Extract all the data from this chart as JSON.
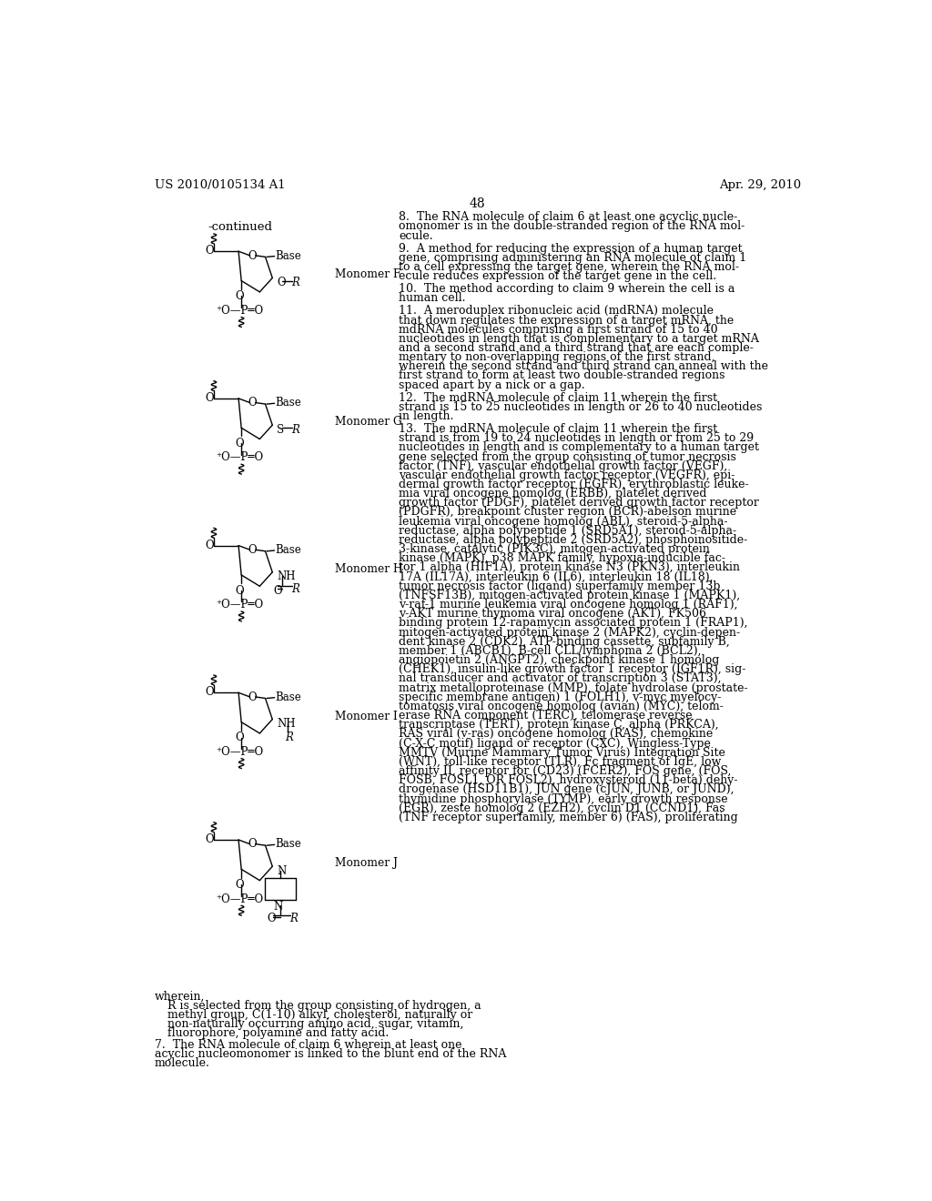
{
  "page_header_left": "US 2010/0105134 A1",
  "page_header_right": "Apr. 29, 2010",
  "page_number": "48",
  "continued_label": "-continued",
  "monomer_labels": [
    "Monomer F",
    "Monomer G",
    "Monomer H",
    "Monomer I",
    "Monomer J"
  ],
  "wherein_text": "wherein,",
  "r_def_lines": [
    "R is selected from the group consisting of hydrogen, a",
    "methyl group, C(1-10) alkyl, cholesterol, naturally or",
    "non-naturally occurring amino acid, sugar, vitamin,",
    "fluorophore, polyamine and fatty acid."
  ],
  "claim7_lines": [
    "7.  The RNA molecule of claim 6 wherein at least one",
    "acyclic nucleomonomer is linked to the blunt end of the RNA",
    "molecule."
  ],
  "claim8_lines": [
    "8.  The RNA molecule of claim 6 at least one acyclic nucle-",
    "omonomer is in the double-stranded region of the RNA mol-",
    "ecule."
  ],
  "claim9_lines": [
    "9.  A method for reducing the expression of a human target",
    "gene, comprising administering an RNA molecule of claim 1",
    "to a cell expressing the target gene, wherein the RNA mol-",
    "ecule reduces expression of the target gene in the cell."
  ],
  "claim10_lines": [
    "10.  The method according to claim 9 wherein the cell is a",
    "human cell."
  ],
  "claim11_lines": [
    "11.  A meroduplex ribonucleic acid (mdRNA) molecule",
    "that down regulates the expression of a target mRNA, the",
    "mdRNA molecules comprising a first strand of 15 to 40",
    "nucleotides in length that is complementary to a target mRNA",
    "and a second strand and a third strand that are each comple-",
    "mentary to non-overlapping regions of the first strand,",
    "wherein the second strand and third strand can anneal with the",
    "first strand to form at least two double-stranded regions",
    "spaced apart by a nick or a gap."
  ],
  "claim12_lines": [
    "12.  The mdRNA molecule of claim 11 wherein the first",
    "strand is 15 to 25 nucleotides in length or 26 to 40 nucleotides",
    "in length."
  ],
  "claim13_lines": [
    "13.  The mdRNA molecule of claim 11 wherein the first",
    "strand is from 19 to 24 nucleotides in length or from 25 to 29",
    "nucleotides in length and is complementary to a human target",
    "gene selected from the group consisting of tumor necrosis",
    "factor (TNF), vascular endothelial growth factor (VEGF),",
    "vascular endothelial growth factor receptor (VEGFR), epi-",
    "dermal growth factor receptor (EGFR), erythroblastic leuke-",
    "mia viral oncogene homolog (ERBB), platelet derived",
    "growth factor (PDGF), platelet derived growth factor receptor",
    "(PDGFR), breakpoint cluster region (BCR)-abelson murine",
    "leukemia viral oncogene homolog (ABL), steroid-5-alpha-",
    "reductase, alpha polypeptide 1 (SRD5A1), steroid-5-alpha-",
    "reductase, alpha polypeptide 2 (SRD5A2), phosphoinositide-",
    "3-kinase, catalytic (PIK3C), mitogen-activated protein",
    "kinase (MAPK), p38 MAPK family, hypoxia-inducible fac-",
    "tor 1 alpha (HIF1A), protein kinase N3 (PKN3), interleukin",
    "17A (IL17A), interleukin 6 (IL6), interleukin 18 (IL18),",
    "tumor necrosis factor (ligand) superfamily member 13b",
    "(TNFSF13B), mitogen-activated protein kinase 1 (MAPK1),",
    "v-raf-1 murine leukemia viral oncogene homolog 1 (RAF1),",
    "v-AKT murine thymoma viral oncogene (AKT), FK506",
    "binding protein 12-rapamycin associated protein 1 (FRAP1),",
    "mitogen-activated protein kinase 2 (MAPK2), cyclin-depen-",
    "dent kinase 2 (CDK2), ATP-binding cassette, subfamily B,",
    "member 1 (ABCB1), B-cell CLL/lymphoma 2 (BCL2),",
    "angiopoietin 2 (ANGPT2), checkpoint kinase 1 homolog",
    "(CHEK1), insulin-like growth factor 1 receptor (IGF1R), sig-",
    "nal transducer and activator of transcription 3 (STAT3),",
    "matrix metalloproteinase (MMP), folate hydrolase (prostate-",
    "specific membrane antigen) 1 (FOLH1), v-myc myelocy-",
    "tomatosis viral oncogene homolog (avian) (MYC), telom-",
    "erase RNA component (TERC), telomerase reverse",
    "transcriptase (TERT), protein kinase C, alpha (PRKCA),",
    "RAS viral (v-ras) oncogene homolog (RAS), chemokine",
    "(C-X-C motif) ligand or receptor (CXC), Wingless-Type",
    "MMTV (Murine Mammary Tumor Virus) Integration Site",
    "(WNT), toll-like receptor (TLR), Fc fragment of IgE, low",
    "affinity II, receptor for (CD23) (FCER2), FOS gene, (FOS,",
    "FOSB, FOSL1, OR FOSL2), hydroxysteroid (11-beta) dehy-",
    "drogenase (HSD11B1), JUN gene (cJUN, JUNB, or JUND),",
    "thymidine phosphorylase (TYMP), early growth response",
    "(EGR), zeste homolog 2 (EZH2), cyclin D1 (CCND1), Fas",
    "(TNF receptor superfamily, member 6) (FAS), proliferating"
  ]
}
